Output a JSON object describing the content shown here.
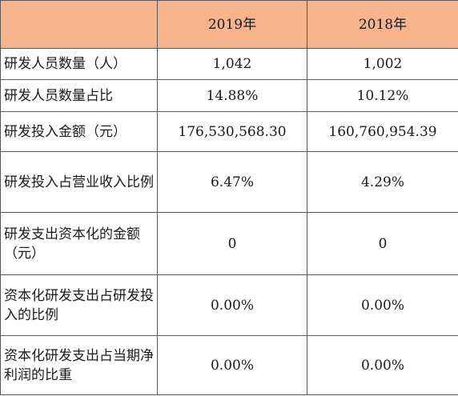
{
  "table": {
    "header": [
      "",
      "2019年",
      "2018年"
    ],
    "rows": [
      {
        "label": "研发人员数量（人）",
        "v2019": "1,042",
        "v2018": "1,002"
      },
      {
        "label": "研发人员数量占比",
        "v2019": "14.88%",
        "v2018": "10.12%"
      },
      {
        "label": "研发投入金额（元）",
        "v2019": "176,530,568.30",
        "v2018": "160,760,954.39"
      },
      {
        "label": "研发投入占营业收入比例",
        "v2019": "6.47%",
        "v2018": "4.29%"
      },
      {
        "label": "研发支出资本化的金额（元）",
        "v2019": "0",
        "v2018": "0"
      },
      {
        "label": "资本化研发支出占研发投入的比例",
        "v2019": "0.00%",
        "v2018": "0.00%"
      },
      {
        "label": "资本化研发支出占当期净利润的比重",
        "v2019": "0.00%",
        "v2018": "0.00%"
      }
    ]
  },
  "colors": {
    "header_bg": "#f6b38c",
    "border": "#555555"
  }
}
